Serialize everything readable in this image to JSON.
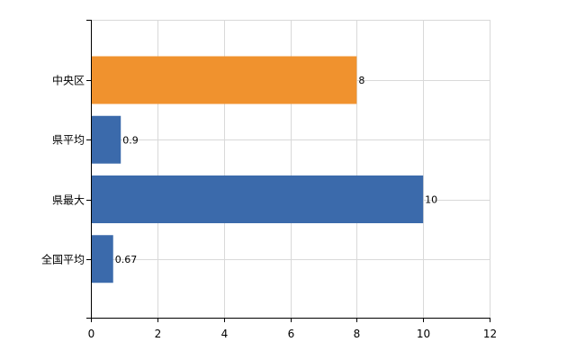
{
  "chart_data": {
    "type": "bar",
    "orientation": "horizontal",
    "categories": [
      "中央区",
      "県平均",
      "県最大",
      "全国平均"
    ],
    "values": [
      8,
      0.9,
      10,
      0.67
    ],
    "value_labels": [
      "8",
      "0.9",
      "10",
      "0.67"
    ],
    "bar_colors": [
      "#f0922e",
      "#3b6aab",
      "#3b6aab",
      "#3b6aab"
    ],
    "xlim": [
      0,
      12
    ],
    "x_ticks": [
      0,
      2,
      4,
      6,
      8,
      10,
      12
    ],
    "x_tick_labels": [
      "0",
      "2",
      "4",
      "6",
      "8",
      "10",
      "12"
    ],
    "grid": true,
    "title": "",
    "xlabel": "",
    "ylabel": ""
  }
}
